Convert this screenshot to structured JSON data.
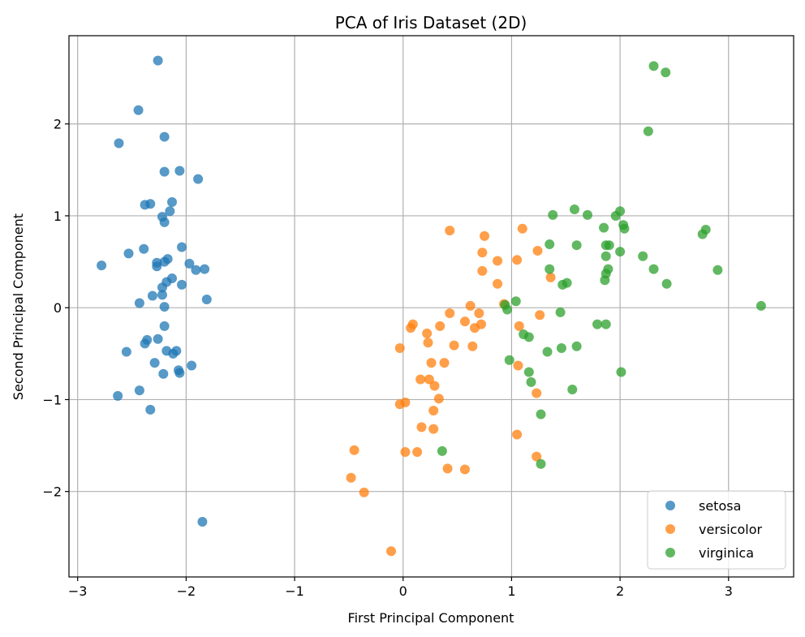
{
  "chart_data": {
    "type": "scatter",
    "title": "PCA of Iris Dataset (2D)",
    "xlabel": "First Principal Component",
    "ylabel": "Second Principal Component",
    "xlim": [
      -3.08,
      3.6
    ],
    "ylim": [
      -2.93,
      2.96
    ],
    "xticks": [
      -3,
      -2,
      -1,
      0,
      1,
      2,
      3
    ],
    "xtick_labels": [
      "−3",
      "−2",
      "−1",
      "0",
      "1",
      "2",
      "3"
    ],
    "yticks": [
      -2,
      -1,
      0,
      1,
      2
    ],
    "ytick_labels": [
      "−2",
      "−1",
      "0",
      "1",
      "2"
    ],
    "grid": true,
    "legend_position": "lower-right",
    "point_opacity": 0.75,
    "series": [
      {
        "name": "setosa",
        "color": "#1f77b4",
        "points": [
          [
            -2.26,
            2.69
          ],
          [
            -2.44,
            2.15
          ],
          [
            -2.62,
            1.79
          ],
          [
            -2.2,
            1.86
          ],
          [
            -2.2,
            1.48
          ],
          [
            -2.06,
            1.49
          ],
          [
            -1.89,
            1.4
          ],
          [
            -2.38,
            1.12
          ],
          [
            -2.33,
            1.13
          ],
          [
            -2.13,
            1.15
          ],
          [
            -2.15,
            1.05
          ],
          [
            -2.22,
            0.99
          ],
          [
            -2.2,
            0.93
          ],
          [
            -2.78,
            0.46
          ],
          [
            -2.53,
            0.59
          ],
          [
            -2.39,
            0.64
          ],
          [
            -2.04,
            0.66
          ],
          [
            -2.17,
            0.53
          ],
          [
            -2.27,
            0.49
          ],
          [
            -2.2,
            0.5
          ],
          [
            -2.27,
            0.45
          ],
          [
            -1.97,
            0.48
          ],
          [
            -1.91,
            0.41
          ],
          [
            -1.83,
            0.42
          ],
          [
            -2.13,
            0.32
          ],
          [
            -2.18,
            0.28
          ],
          [
            -2.04,
            0.25
          ],
          [
            -2.22,
            0.22
          ],
          [
            -2.31,
            0.13
          ],
          [
            -2.22,
            0.14
          ],
          [
            -1.81,
            0.09
          ],
          [
            -2.43,
            0.05
          ],
          [
            -2.2,
            0.01
          ],
          [
            -2.2,
            -0.2
          ],
          [
            -2.36,
            -0.35
          ],
          [
            -2.26,
            -0.34
          ],
          [
            -2.38,
            -0.39
          ],
          [
            -2.18,
            -0.47
          ],
          [
            -2.09,
            -0.47
          ],
          [
            -2.12,
            -0.5
          ],
          [
            -2.55,
            -0.48
          ],
          [
            -2.29,
            -0.6
          ],
          [
            -1.95,
            -0.63
          ],
          [
            -2.07,
            -0.68
          ],
          [
            -2.06,
            -0.71
          ],
          [
            -2.21,
            -0.72
          ],
          [
            -2.43,
            -0.9
          ],
          [
            -2.63,
            -0.96
          ],
          [
            -2.33,
            -1.11
          ],
          [
            -1.85,
            -2.33
          ]
        ]
      },
      {
        "name": "versicolor",
        "color": "#ff7f0e",
        "points": [
          [
            0.43,
            0.84
          ],
          [
            1.1,
            0.86
          ],
          [
            0.75,
            0.78
          ],
          [
            0.73,
            0.6
          ],
          [
            0.87,
            0.51
          ],
          [
            1.05,
            0.52
          ],
          [
            1.24,
            0.62
          ],
          [
            0.73,
            0.4
          ],
          [
            1.36,
            0.33
          ],
          [
            0.87,
            0.26
          ],
          [
            0.93,
            0.04
          ],
          [
            0.62,
            0.02
          ],
          [
            0.7,
            -0.06
          ],
          [
            0.43,
            -0.06
          ],
          [
            1.26,
            -0.08
          ],
          [
            0.57,
            -0.15
          ],
          [
            0.34,
            -0.2
          ],
          [
            0.72,
            -0.18
          ],
          [
            0.66,
            -0.22
          ],
          [
            1.07,
            -0.2
          ],
          [
            0.09,
            -0.18
          ],
          [
            0.07,
            -0.22
          ],
          [
            0.22,
            -0.28
          ],
          [
            0.23,
            -0.38
          ],
          [
            0.47,
            -0.41
          ],
          [
            0.64,
            -0.42
          ],
          [
            -0.03,
            -0.44
          ],
          [
            0.26,
            -0.6
          ],
          [
            0.38,
            -0.6
          ],
          [
            1.06,
            -0.63
          ],
          [
            0.16,
            -0.78
          ],
          [
            0.24,
            -0.78
          ],
          [
            0.29,
            -0.85
          ],
          [
            1.23,
            -0.93
          ],
          [
            0.33,
            -0.99
          ],
          [
            -0.03,
            -1.05
          ],
          [
            0.02,
            -1.03
          ],
          [
            0.28,
            -1.12
          ],
          [
            0.17,
            -1.3
          ],
          [
            0.28,
            -1.32
          ],
          [
            1.05,
            -1.38
          ],
          [
            -0.45,
            -1.55
          ],
          [
            0.02,
            -1.57
          ],
          [
            0.13,
            -1.57
          ],
          [
            1.23,
            -1.62
          ],
          [
            0.41,
            -1.75
          ],
          [
            0.57,
            -1.76
          ],
          [
            -0.48,
            -1.85
          ],
          [
            -0.36,
            -2.01
          ],
          [
            -0.11,
            -2.65
          ]
        ]
      },
      {
        "name": "virginica",
        "color": "#2ca02c",
        "points": [
          [
            2.31,
            2.63
          ],
          [
            2.42,
            2.56
          ],
          [
            2.26,
            1.92
          ],
          [
            1.58,
            1.07
          ],
          [
            2.0,
            1.05
          ],
          [
            1.38,
            1.01
          ],
          [
            1.7,
            1.01
          ],
          [
            1.96,
            1.0
          ],
          [
            2.03,
            0.9
          ],
          [
            1.85,
            0.87
          ],
          [
            2.04,
            0.86
          ],
          [
            2.79,
            0.85
          ],
          [
            2.76,
            0.8
          ],
          [
            1.35,
            0.69
          ],
          [
            1.6,
            0.68
          ],
          [
            1.87,
            0.68
          ],
          [
            1.9,
            0.68
          ],
          [
            2.0,
            0.61
          ],
          [
            1.87,
            0.56
          ],
          [
            2.21,
            0.56
          ],
          [
            1.35,
            0.42
          ],
          [
            1.89,
            0.42
          ],
          [
            2.31,
            0.42
          ],
          [
            2.9,
            0.41
          ],
          [
            1.87,
            0.37
          ],
          [
            1.86,
            0.3
          ],
          [
            1.51,
            0.27
          ],
          [
            1.47,
            0.25
          ],
          [
            2.43,
            0.26
          ],
          [
            3.3,
            0.02
          ],
          [
            0.94,
            0.03
          ],
          [
            1.04,
            0.07
          ],
          [
            0.96,
            -0.02
          ],
          [
            1.45,
            -0.05
          ],
          [
            1.79,
            -0.18
          ],
          [
            1.87,
            -0.18
          ],
          [
            1.11,
            -0.29
          ],
          [
            1.16,
            -0.32
          ],
          [
            1.6,
            -0.42
          ],
          [
            1.46,
            -0.44
          ],
          [
            1.33,
            -0.48
          ],
          [
            0.98,
            -0.57
          ],
          [
            2.01,
            -0.7
          ],
          [
            1.16,
            -0.7
          ],
          [
            1.18,
            -0.81
          ],
          [
            1.56,
            -0.89
          ],
          [
            1.27,
            -1.16
          ],
          [
            0.36,
            -1.56
          ],
          [
            1.27,
            -1.7
          ]
        ]
      }
    ]
  }
}
